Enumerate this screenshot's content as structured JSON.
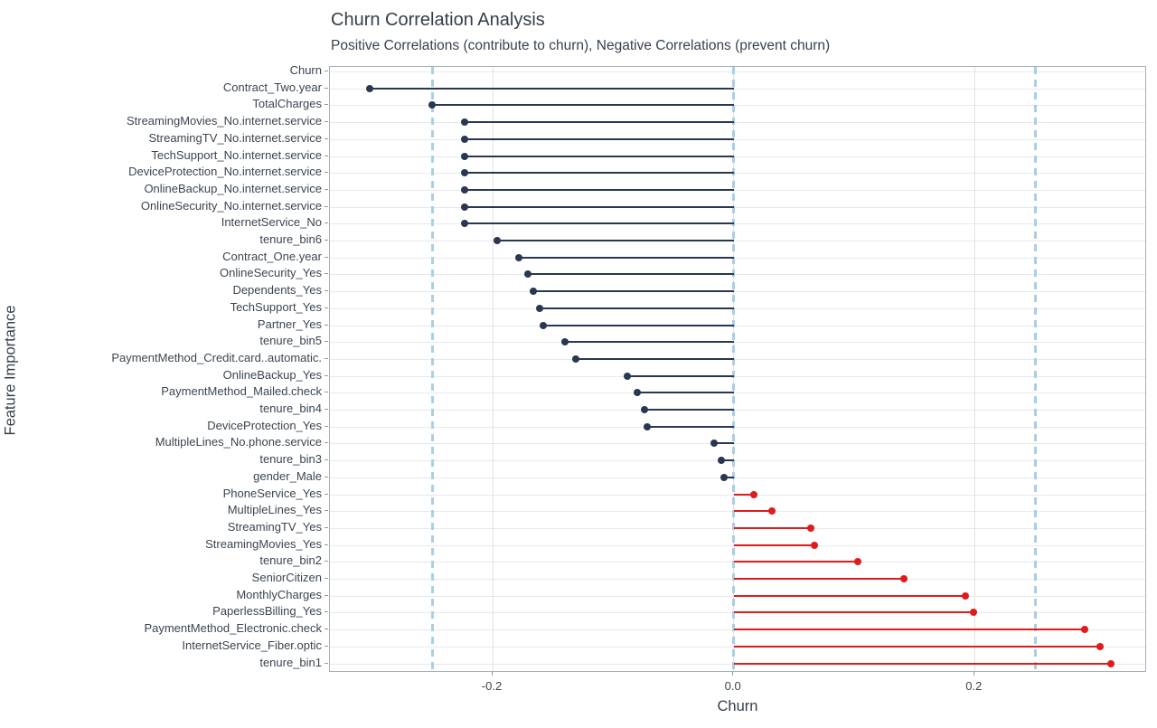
{
  "chart_data": {
    "type": "bar",
    "variant": "lollipop",
    "orientation": "horizontal",
    "title": "Churn Correlation Analysis",
    "subtitle": "Positive Correlations (contribute to churn), Negative Correlations (prevent churn)",
    "xlabel": "Churn",
    "ylabel": "Feature Importance",
    "xlim": [
      -0.335,
      0.343
    ],
    "x_ticks": [
      -0.2,
      0.0,
      0.2
    ],
    "x_tick_labels": [
      "-0.2",
      "0.0",
      "0.2"
    ],
    "reference_lines": [
      -0.25,
      0.0,
      0.25
    ],
    "reference_line_style": "dashed",
    "grid": "major",
    "legend_position": "none",
    "categories": [
      "Churn",
      "Contract_Two.year",
      "TotalCharges",
      "StreamingMovies_No.internet.service",
      "StreamingTV_No.internet.service",
      "TechSupport_No.internet.service",
      "DeviceProtection_No.internet.service",
      "OnlineBackup_No.internet.service",
      "OnlineSecurity_No.internet.service",
      "InternetService_No",
      "tenure_bin6",
      "Contract_One.year",
      "OnlineSecurity_Yes",
      "Dependents_Yes",
      "TechSupport_Yes",
      "Partner_Yes",
      "tenure_bin5",
      "PaymentMethod_Credit.card..automatic.",
      "OnlineBackup_Yes",
      "PaymentMethod_Mailed.check",
      "tenure_bin4",
      "DeviceProtection_Yes",
      "MultipleLines_No.phone.service",
      "tenure_bin3",
      "gender_Male",
      "PhoneService_Yes",
      "MultipleLines_Yes",
      "StreamingTV_Yes",
      "StreamingMovies_Yes",
      "tenure_bin2",
      "SeniorCitizen",
      "MonthlyCharges",
      "PaperlessBilling_Yes",
      "PaymentMethod_Electronic.check",
      "InternetService_Fiber.optic",
      "tenure_bin1"
    ],
    "values": [
      null,
      -0.302,
      -0.25,
      -0.223,
      -0.223,
      -0.223,
      -0.223,
      -0.223,
      -0.223,
      -0.223,
      -0.196,
      -0.178,
      -0.171,
      -0.166,
      -0.161,
      -0.158,
      -0.14,
      -0.131,
      -0.088,
      -0.08,
      -0.074,
      -0.072,
      -0.016,
      -0.01,
      -0.008,
      0.017,
      0.032,
      0.064,
      0.067,
      0.103,
      0.141,
      0.192,
      0.199,
      0.291,
      0.304,
      0.313
    ],
    "colors": {
      "negative": "#283850",
      "positive": "#e01b1b",
      "reference": "#a9cfe7",
      "grid": "#e6e9eb",
      "text": "#333e49"
    },
    "color_rule": "negative correlations dark navy, positive correlations red"
  }
}
